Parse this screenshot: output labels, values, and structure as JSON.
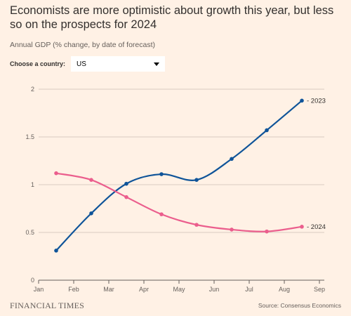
{
  "header": {
    "title": "Economists are more optimistic about growth this year, but less so on the prospects for 2024",
    "subtitle": "Annual GDP (% change, by date of forecast)"
  },
  "selector": {
    "label": "Choose a country:",
    "value": "US"
  },
  "footer": {
    "brand": "FINANCIAL TIMES",
    "source": "Source: Consensus Economics"
  },
  "colors": {
    "background": "#fff1e5",
    "series_2023": "#0f5499",
    "series_2024": "#eb5e8d",
    "grid": "#d9ccc1",
    "axis_text": "#66605c"
  },
  "chart_data": {
    "type": "line",
    "x_ticks": [
      "Jan",
      "Feb",
      "Mar",
      "Apr",
      "May",
      "Jun",
      "Jul",
      "Aug",
      "Sep"
    ],
    "y_ticks": [
      "0",
      "0.5",
      "1",
      "1.5",
      "2"
    ],
    "ylim": [
      0,
      2
    ],
    "xlim": [
      0,
      8
    ],
    "grid": true,
    "series": [
      {
        "name": "2023",
        "x": [
          0.5,
          1.5,
          2.5,
          3.5,
          4.5,
          5.5,
          6.5,
          7.5
        ],
        "values": [
          0.31,
          0.7,
          1.01,
          1.11,
          1.05,
          1.27,
          1.57,
          1.88
        ]
      },
      {
        "name": "2024",
        "x": [
          0.5,
          1.5,
          2.5,
          3.5,
          4.5,
          5.5,
          6.5,
          7.5
        ],
        "values": [
          1.12,
          1.05,
          0.87,
          0.69,
          0.58,
          0.53,
          0.51,
          0.56
        ]
      }
    ]
  }
}
